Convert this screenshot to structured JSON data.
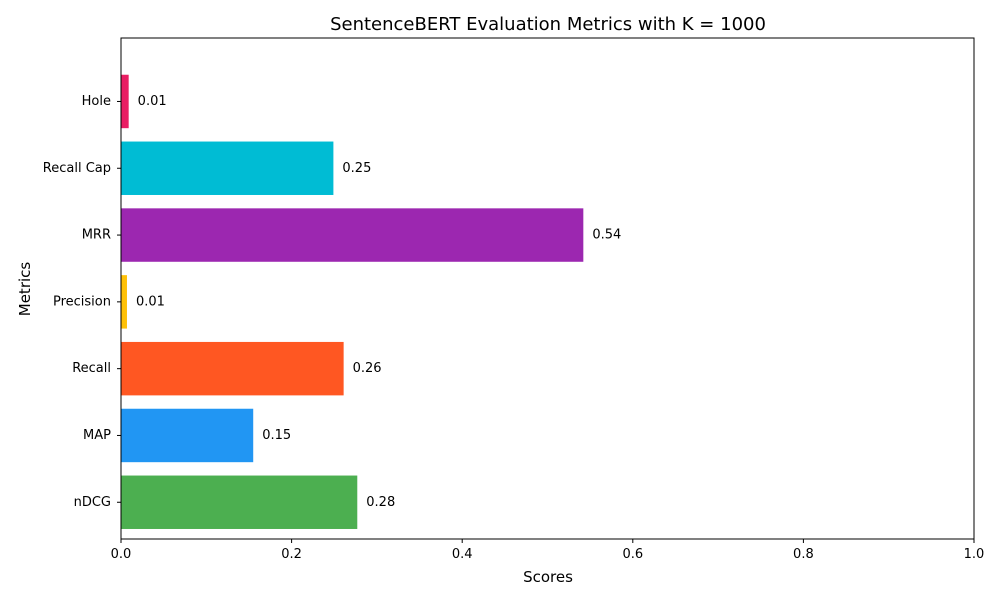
{
  "chart_data": {
    "type": "bar",
    "orientation": "horizontal",
    "title": "SentenceBERT Evaluation Metrics with K = 1000",
    "xlabel": "Scores",
    "ylabel": "Metrics",
    "xlim": [
      0,
      1
    ],
    "xticks": [
      "0.0",
      "0.2",
      "0.4",
      "0.6",
      "0.8",
      "1.0"
    ],
    "grid": false,
    "categories": [
      "nDCG",
      "MAP",
      "Recall",
      "Precision",
      "MRR",
      "Recall Cap",
      "Hole"
    ],
    "values": [
      0.277,
      0.155,
      0.261,
      0.007,
      0.542,
      0.249,
      0.009
    ],
    "value_labels": [
      "0.28",
      "0.15",
      "0.26",
      "0.01",
      "0.54",
      "0.25",
      "0.01"
    ],
    "colors": [
      "#4caf50",
      "#2196f3",
      "#ff5722",
      "#ffc107",
      "#9c27b0",
      "#00bcd4",
      "#e91e63"
    ]
  }
}
